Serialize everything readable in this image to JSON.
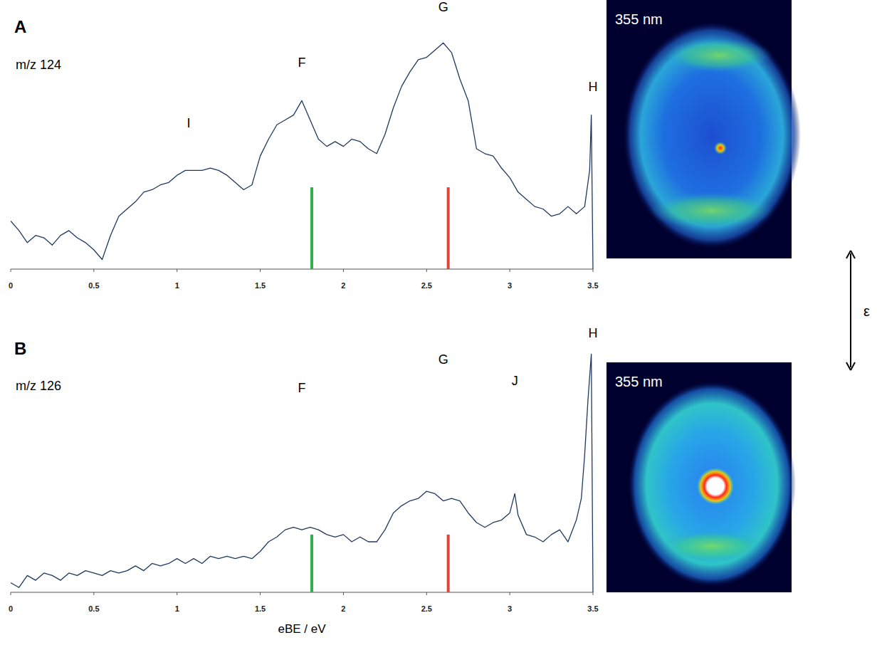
{
  "chart_data": [
    {
      "type": "line",
      "panel": "A",
      "title": "m/z 124",
      "color": "#1f3a5f",
      "xlim": [
        0,
        3.5
      ],
      "xticks": [
        0,
        0.5,
        1,
        1.5,
        2,
        2.5,
        3,
        3.5
      ],
      "ylim": [
        0,
        1
      ],
      "tick_labels": "x",
      "x": [
        0,
        0.05,
        0.1,
        0.15,
        0.2,
        0.25,
        0.3,
        0.35,
        0.4,
        0.45,
        0.5,
        0.55,
        0.6,
        0.65,
        0.7,
        0.75,
        0.8,
        0.85,
        0.9,
        0.95,
        1.0,
        1.05,
        1.1,
        1.15,
        1.2,
        1.25,
        1.3,
        1.35,
        1.4,
        1.45,
        1.5,
        1.55,
        1.6,
        1.65,
        1.7,
        1.75,
        1.8,
        1.85,
        1.9,
        1.95,
        2.0,
        2.05,
        2.1,
        2.15,
        2.2,
        2.25,
        2.3,
        2.35,
        2.4,
        2.45,
        2.5,
        2.55,
        2.6,
        2.65,
        2.7,
        2.75,
        2.8,
        2.85,
        2.9,
        2.95,
        3.0,
        3.05,
        3.1,
        3.15,
        3.2,
        3.25,
        3.3,
        3.35,
        3.4,
        3.45,
        3.48,
        3.49,
        3.5
      ],
      "values": [
        0.2,
        0.16,
        0.11,
        0.14,
        0.13,
        0.1,
        0.14,
        0.16,
        0.13,
        0.11,
        0.08,
        0.04,
        0.14,
        0.22,
        0.25,
        0.28,
        0.32,
        0.33,
        0.35,
        0.36,
        0.39,
        0.41,
        0.41,
        0.41,
        0.42,
        0.41,
        0.39,
        0.36,
        0.33,
        0.35,
        0.47,
        0.54,
        0.6,
        0.62,
        0.64,
        0.7,
        0.62,
        0.54,
        0.51,
        0.53,
        0.51,
        0.54,
        0.53,
        0.5,
        0.48,
        0.56,
        0.67,
        0.76,
        0.82,
        0.87,
        0.88,
        0.91,
        0.94,
        0.9,
        0.79,
        0.7,
        0.5,
        0.48,
        0.47,
        0.42,
        0.38,
        0.32,
        0.29,
        0.26,
        0.25,
        0.22,
        0.23,
        0.26,
        0.23,
        0.26,
        0.41,
        0.64,
        0
      ],
      "peak_labels": [
        {
          "label": "I",
          "x": 1.07,
          "y": 0.59
        },
        {
          "label": "F",
          "x": 1.75,
          "y": 0.84
        },
        {
          "label": "G",
          "x": 2.6,
          "y": 1.07
        },
        {
          "label": "H",
          "x": 3.5,
          "y": 0.74
        }
      ],
      "lines": [
        {
          "x": 1.81,
          "height": 0.34,
          "color": "#2db34a"
        },
        {
          "x": 2.63,
          "height": 0.34,
          "color": "#e0453a"
        }
      ],
      "image": {
        "label": "355 nm"
      }
    },
    {
      "type": "line",
      "panel": "B",
      "title": "m/z 126",
      "x_label": "eBE / eV",
      "color": "#1f3a5f",
      "xlim": [
        0,
        3.5
      ],
      "xticks": [
        0,
        0.5,
        1,
        1.5,
        2,
        2.5,
        3,
        3.5
      ],
      "ylim": [
        0,
        1
      ],
      "tick_labels": "x",
      "x": [
        0,
        0.05,
        0.1,
        0.15,
        0.2,
        0.25,
        0.3,
        0.35,
        0.4,
        0.45,
        0.5,
        0.55,
        0.6,
        0.65,
        0.7,
        0.75,
        0.8,
        0.85,
        0.9,
        0.95,
        1.0,
        1.05,
        1.1,
        1.15,
        1.2,
        1.25,
        1.3,
        1.35,
        1.4,
        1.45,
        1.5,
        1.55,
        1.6,
        1.65,
        1.7,
        1.75,
        1.8,
        1.85,
        1.9,
        1.95,
        2.0,
        2.05,
        2.1,
        2.15,
        2.2,
        2.25,
        2.3,
        2.35,
        2.4,
        2.45,
        2.5,
        2.55,
        2.6,
        2.65,
        2.7,
        2.75,
        2.8,
        2.85,
        2.9,
        2.95,
        3.0,
        3.03,
        3.05,
        3.1,
        3.15,
        3.2,
        3.25,
        3.3,
        3.35,
        3.4,
        3.43,
        3.45,
        3.47,
        3.49,
        3.5
      ],
      "values": [
        0.04,
        0.02,
        0.07,
        0.05,
        0.08,
        0.07,
        0.05,
        0.08,
        0.07,
        0.09,
        0.08,
        0.07,
        0.09,
        0.08,
        0.09,
        0.11,
        0.09,
        0.12,
        0.11,
        0.12,
        0.14,
        0.12,
        0.14,
        0.12,
        0.15,
        0.14,
        0.15,
        0.14,
        0.15,
        0.14,
        0.17,
        0.21,
        0.23,
        0.26,
        0.27,
        0.26,
        0.27,
        0.26,
        0.24,
        0.23,
        0.24,
        0.21,
        0.23,
        0.21,
        0.21,
        0.26,
        0.33,
        0.36,
        0.38,
        0.39,
        0.42,
        0.41,
        0.38,
        0.39,
        0.38,
        0.33,
        0.29,
        0.27,
        0.29,
        0.3,
        0.33,
        0.41,
        0.32,
        0.24,
        0.23,
        0.21,
        0.24,
        0.26,
        0.21,
        0.3,
        0.39,
        0.57,
        0.8,
        0.99,
        0
      ],
      "peak_labels": [
        {
          "label": "F",
          "x": 1.75,
          "y": 0.83
        },
        {
          "label": "G",
          "x": 2.6,
          "y": 0.95
        },
        {
          "label": "J",
          "x": 3.03,
          "y": 0.86
        },
        {
          "label": "H",
          "x": 3.5,
          "y": 1.06
        }
      ],
      "lines": [
        {
          "x": 1.81,
          "height": 0.24,
          "color": "#2db34a"
        },
        {
          "x": 2.63,
          "height": 0.24,
          "color": "#e0453a"
        }
      ],
      "image": {
        "label": "355 nm"
      }
    }
  ],
  "polarization_label": "ε"
}
